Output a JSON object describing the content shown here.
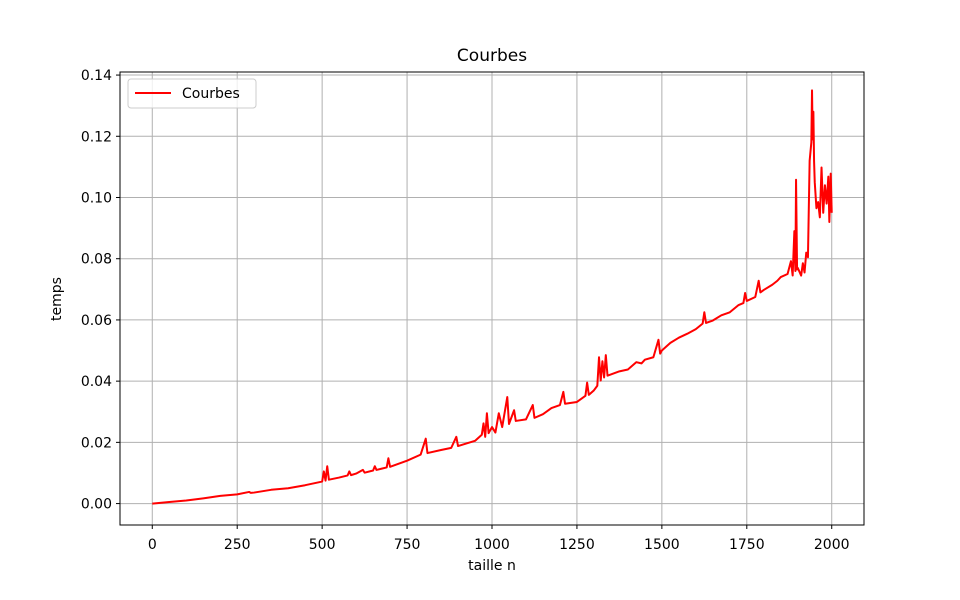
{
  "chart_data": {
    "type": "line",
    "title": "Courbes",
    "xlabel": "taille n",
    "ylabel": "temps",
    "xlim": [
      -95,
      2095
    ],
    "ylim": [
      -0.007,
      0.141
    ],
    "xticks": [
      0,
      250,
      500,
      750,
      1000,
      1250,
      1500,
      1750,
      2000
    ],
    "xtick_labels": [
      "0",
      "250",
      "500",
      "750",
      "1000",
      "1250",
      "1500",
      "1750",
      "2000"
    ],
    "yticks": [
      0.0,
      0.02,
      0.04,
      0.06,
      0.08,
      0.1,
      0.12,
      0.14
    ],
    "ytick_labels": [
      "0.00",
      "0.02",
      "0.04",
      "0.06",
      "0.08",
      "0.10",
      "0.12",
      "0.14"
    ],
    "grid": true,
    "legend": {
      "position": "top-left",
      "entries": [
        "Courbes"
      ]
    },
    "series": [
      {
        "name": "Courbes",
        "color": "#ff0000",
        "points": [
          [
            0,
            0.0
          ],
          [
            50,
            0.0005
          ],
          [
            100,
            0.001
          ],
          [
            150,
            0.0017
          ],
          [
            200,
            0.0025
          ],
          [
            250,
            0.003
          ],
          [
            285,
            0.0038
          ],
          [
            290,
            0.0035
          ],
          [
            300,
            0.0036
          ],
          [
            350,
            0.0045
          ],
          [
            400,
            0.005
          ],
          [
            450,
            0.006
          ],
          [
            500,
            0.0072
          ],
          [
            505,
            0.0105
          ],
          [
            510,
            0.0075
          ],
          [
            515,
            0.0122
          ],
          [
            520,
            0.0078
          ],
          [
            550,
            0.0085
          ],
          [
            575,
            0.0092
          ],
          [
            580,
            0.0105
          ],
          [
            585,
            0.0093
          ],
          [
            600,
            0.0098
          ],
          [
            620,
            0.011
          ],
          [
            625,
            0.0101
          ],
          [
            650,
            0.0108
          ],
          [
            655,
            0.0122
          ],
          [
            660,
            0.011
          ],
          [
            690,
            0.0118
          ],
          [
            695,
            0.0148
          ],
          [
            700,
            0.012
          ],
          [
            750,
            0.014
          ],
          [
            790,
            0.016
          ],
          [
            805,
            0.0212
          ],
          [
            810,
            0.0165
          ],
          [
            850,
            0.0175
          ],
          [
            880,
            0.0182
          ],
          [
            895,
            0.0218
          ],
          [
            900,
            0.0188
          ],
          [
            950,
            0.0205
          ],
          [
            970,
            0.0225
          ],
          [
            975,
            0.0262
          ],
          [
            980,
            0.0218
          ],
          [
            985,
            0.0295
          ],
          [
            990,
            0.023
          ],
          [
            1000,
            0.025
          ],
          [
            1010,
            0.0232
          ],
          [
            1020,
            0.0295
          ],
          [
            1030,
            0.025
          ],
          [
            1045,
            0.0348
          ],
          [
            1050,
            0.026
          ],
          [
            1065,
            0.0305
          ],
          [
            1070,
            0.027
          ],
          [
            1100,
            0.0275
          ],
          [
            1120,
            0.0322
          ],
          [
            1125,
            0.028
          ],
          [
            1150,
            0.0292
          ],
          [
            1175,
            0.0312
          ],
          [
            1200,
            0.0322
          ],
          [
            1210,
            0.0365
          ],
          [
            1215,
            0.0326
          ],
          [
            1250,
            0.0332
          ],
          [
            1275,
            0.0352
          ],
          [
            1280,
            0.0395
          ],
          [
            1285,
            0.0355
          ],
          [
            1300,
            0.037
          ],
          [
            1310,
            0.0385
          ],
          [
            1315,
            0.0478
          ],
          [
            1320,
            0.0402
          ],
          [
            1325,
            0.0465
          ],
          [
            1330,
            0.0412
          ],
          [
            1335,
            0.0485
          ],
          [
            1340,
            0.0418
          ],
          [
            1350,
            0.0422
          ],
          [
            1375,
            0.0432
          ],
          [
            1400,
            0.0438
          ],
          [
            1425,
            0.0462
          ],
          [
            1440,
            0.0458
          ],
          [
            1450,
            0.047
          ],
          [
            1475,
            0.0478
          ],
          [
            1490,
            0.0535
          ],
          [
            1495,
            0.049
          ],
          [
            1500,
            0.05
          ],
          [
            1525,
            0.0525
          ],
          [
            1550,
            0.0542
          ],
          [
            1575,
            0.0555
          ],
          [
            1600,
            0.057
          ],
          [
            1620,
            0.0588
          ],
          [
            1625,
            0.0625
          ],
          [
            1630,
            0.059
          ],
          [
            1650,
            0.0598
          ],
          [
            1675,
            0.0615
          ],
          [
            1700,
            0.0625
          ],
          [
            1725,
            0.0648
          ],
          [
            1740,
            0.0655
          ],
          [
            1745,
            0.0688
          ],
          [
            1750,
            0.0662
          ],
          [
            1775,
            0.0675
          ],
          [
            1785,
            0.0728
          ],
          [
            1790,
            0.069
          ],
          [
            1800,
            0.0698
          ],
          [
            1825,
            0.0715
          ],
          [
            1840,
            0.0728
          ],
          [
            1850,
            0.074
          ],
          [
            1870,
            0.075
          ],
          [
            1880,
            0.0792
          ],
          [
            1885,
            0.0745
          ],
          [
            1890,
            0.089
          ],
          [
            1893,
            0.076
          ],
          [
            1895,
            0.1058
          ],
          [
            1898,
            0.0765
          ],
          [
            1900,
            0.077
          ],
          [
            1910,
            0.0745
          ],
          [
            1915,
            0.0785
          ],
          [
            1920,
            0.0755
          ],
          [
            1925,
            0.082
          ],
          [
            1930,
            0.0805
          ],
          [
            1935,
            0.112
          ],
          [
            1940,
            0.118
          ],
          [
            1942,
            0.135
          ],
          [
            1944,
            0.119
          ],
          [
            1946,
            0.128
          ],
          [
            1948,
            0.112
          ],
          [
            1950,
            0.105
          ],
          [
            1955,
            0.0965
          ],
          [
            1960,
            0.0985
          ],
          [
            1965,
            0.0935
          ],
          [
            1970,
            0.1098
          ],
          [
            1975,
            0.095
          ],
          [
            1980,
            0.104
          ],
          [
            1985,
            0.098
          ],
          [
            1990,
            0.1068
          ],
          [
            1993,
            0.092
          ],
          [
            1997,
            0.1078
          ],
          [
            2000,
            0.095
          ]
        ]
      }
    ]
  }
}
